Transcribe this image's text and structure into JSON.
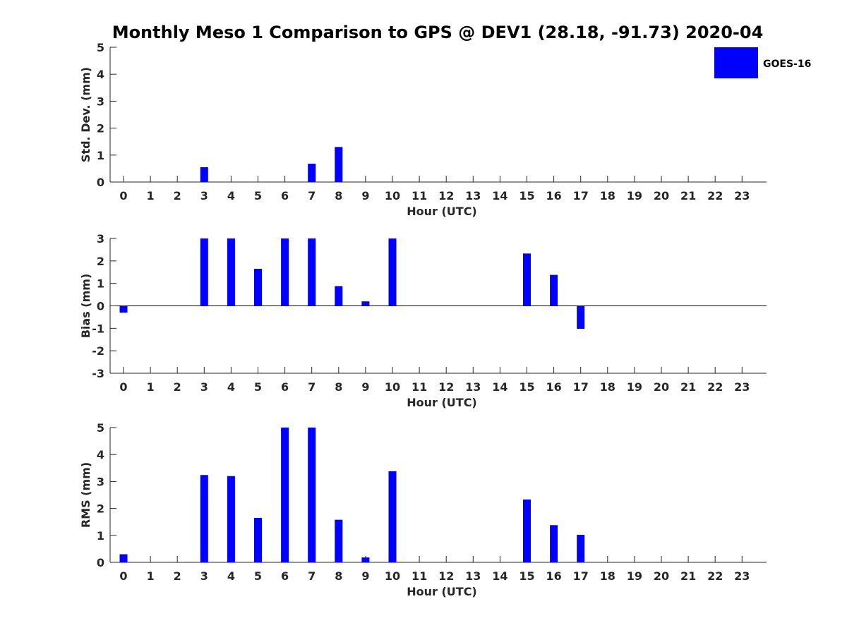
{
  "title": "Monthly Meso 1 Comparison to GPS @ DEV1 (28.18, -91.73) 2020-04",
  "legend": {
    "label": "GOES-16",
    "color": "#0000ff"
  },
  "chart_data": [
    {
      "type": "bar",
      "xlabel": "Hour (UTC)",
      "ylabel": "Std. Dev. (mm)",
      "ylim": [
        0,
        5
      ],
      "yticks": [
        "0",
        "1",
        "2",
        "3",
        "4",
        "5"
      ],
      "categories": [
        "0",
        "1",
        "2",
        "3",
        "4",
        "5",
        "6",
        "7",
        "8",
        "9",
        "10",
        "11",
        "12",
        "13",
        "14",
        "15",
        "16",
        "17",
        "18",
        "19",
        "20",
        "21",
        "22",
        "23"
      ],
      "series": [
        {
          "name": "GOES-16",
          "values": [
            null,
            null,
            null,
            0.55,
            null,
            null,
            null,
            0.68,
            1.3,
            null,
            null,
            null,
            null,
            null,
            null,
            null,
            null,
            null,
            null,
            null,
            null,
            null,
            null,
            null
          ]
        }
      ]
    },
    {
      "type": "bar",
      "xlabel": "Hour (UTC)",
      "ylabel": "Bias (mm)",
      "ylim": [
        -3,
        3
      ],
      "yticks": [
        "-3",
        "-2",
        "-1",
        "0",
        "1",
        "2",
        "3"
      ],
      "categories": [
        "0",
        "1",
        "2",
        "3",
        "4",
        "5",
        "6",
        "7",
        "8",
        "9",
        "10",
        "11",
        "12",
        "13",
        "14",
        "15",
        "16",
        "17",
        "18",
        "19",
        "20",
        "21",
        "22",
        "23"
      ],
      "series": [
        {
          "name": "GOES-16",
          "values": [
            -0.3,
            null,
            null,
            3.0,
            3.0,
            1.65,
            3.0,
            3.0,
            0.88,
            0.2,
            3.0,
            null,
            null,
            null,
            null,
            2.33,
            1.38,
            -1.02,
            null,
            null,
            null,
            null,
            null,
            null
          ]
        }
      ]
    },
    {
      "type": "bar",
      "xlabel": "Hour (UTC)",
      "ylabel": "RMS (mm)",
      "ylim": [
        0,
        5
      ],
      "yticks": [
        "0",
        "1",
        "2",
        "3",
        "4",
        "5"
      ],
      "categories": [
        "0",
        "1",
        "2",
        "3",
        "4",
        "5",
        "6",
        "7",
        "8",
        "9",
        "10",
        "11",
        "12",
        "13",
        "14",
        "15",
        "16",
        "17",
        "18",
        "19",
        "20",
        "21",
        "22",
        "23"
      ],
      "series": [
        {
          "name": "GOES-16",
          "values": [
            0.3,
            null,
            null,
            3.24,
            3.2,
            1.65,
            5.0,
            5.0,
            1.58,
            0.18,
            3.38,
            null,
            null,
            null,
            null,
            2.33,
            1.38,
            1.02,
            null,
            null,
            null,
            null,
            null,
            null
          ]
        }
      ]
    }
  ]
}
